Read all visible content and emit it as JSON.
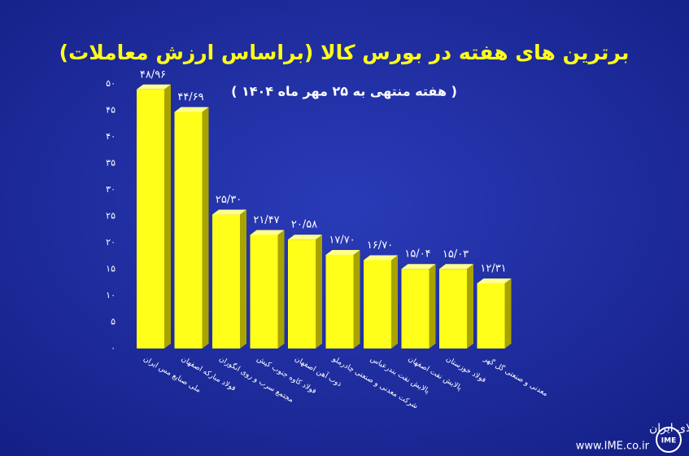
{
  "chart_data": {
    "type": "bar",
    "title": "برترین های هفته در بورس کالا (براساس ارزش معاملات)",
    "subtitle": "( هفته منتهی به ۲۵ مهر ماه ۱۴۰۴ )",
    "categories": [
      "ملی صنایع مس ایران",
      "فولاد مبارکه اصفهان",
      "مجتمع سرب و روی انگوران",
      "فولاد کاوه جنوب کیش",
      "ذوب آهن اصفهان",
      "شرکت معدنی و صنعتی چادرملو",
      "پالایش نفت بندرعباس",
      "پالایش نفت اصفهان",
      "فولاد خوزستان",
      "معدنی و صنعتی گل گهر"
    ],
    "values": [
      48.96,
      44.69,
      25.3,
      21.47,
      20.58,
      17.7,
      16.7,
      15.04,
      15.03,
      12.31
    ],
    "value_labels": [
      "۴۸/۹۶",
      "۴۴/۶۹",
      "۲۵/۳۰",
      "۲۱/۴۷",
      "۲۰/۵۸",
      "۱۷/۷۰",
      "۱۶/۷۰",
      "۱۵/۰۴",
      "۱۵/۰۳",
      "۱۲/۳۱"
    ],
    "color": "#ffff1a",
    "ylim": [
      0,
      50
    ],
    "yticks": [
      {
        "value": 0,
        "label": "۰"
      },
      {
        "value": 5,
        "label": "۵"
      },
      {
        "value": 10,
        "label": "۱۰"
      },
      {
        "value": 15,
        "label": "۱۵"
      },
      {
        "value": 20,
        "label": "۲۰"
      },
      {
        "value": 25,
        "label": "۲۵"
      },
      {
        "value": 30,
        "label": "۳۰"
      },
      {
        "value": 35,
        "label": "۳۵"
      },
      {
        "value": 40,
        "label": "۴۰"
      },
      {
        "value": 45,
        "label": "۴۵"
      },
      {
        "value": 50,
        "label": "۵۰"
      }
    ],
    "grid": false
  },
  "footer": {
    "org": "بورس کالای ایران",
    "url": "www.IME.co.ir",
    "logo": "IME"
  }
}
